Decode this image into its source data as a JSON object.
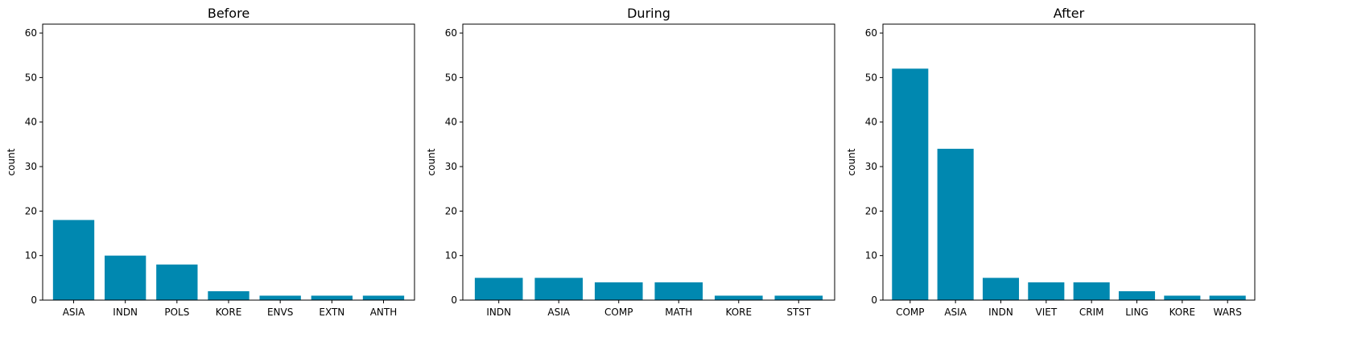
{
  "colors": {
    "bar": "#0088B0",
    "background": "#ffffff"
  },
  "chart_data": [
    {
      "type": "bar",
      "title": "Before",
      "xlabel": "",
      "ylabel": "count",
      "ylim": [
        0,
        62
      ],
      "yticks": [
        0,
        10,
        20,
        30,
        40,
        50,
        60
      ],
      "grid": false,
      "categories": [
        "ASIA",
        "INDN",
        "POLS",
        "KORE",
        "ENVS",
        "EXTN",
        "ANTH"
      ],
      "values": [
        18,
        10,
        8,
        2,
        1,
        1,
        1
      ]
    },
    {
      "type": "bar",
      "title": "During",
      "xlabel": "",
      "ylabel": "count",
      "ylim": [
        0,
        62
      ],
      "yticks": [
        0,
        10,
        20,
        30,
        40,
        50,
        60
      ],
      "grid": false,
      "categories": [
        "INDN",
        "ASIA",
        "COMP",
        "MATH",
        "KORE",
        "STST"
      ],
      "values": [
        5,
        5,
        4,
        4,
        1,
        1
      ]
    },
    {
      "type": "bar",
      "title": "After",
      "xlabel": "",
      "ylabel": "count",
      "ylim": [
        0,
        62
      ],
      "yticks": [
        0,
        10,
        20,
        30,
        40,
        50,
        60
      ],
      "grid": false,
      "categories": [
        "COMP",
        "ASIA",
        "INDN",
        "VIET",
        "CRIM",
        "LING",
        "KORE",
        "WARS"
      ],
      "values": [
        52,
        34,
        5,
        4,
        4,
        2,
        1,
        1
      ]
    }
  ]
}
